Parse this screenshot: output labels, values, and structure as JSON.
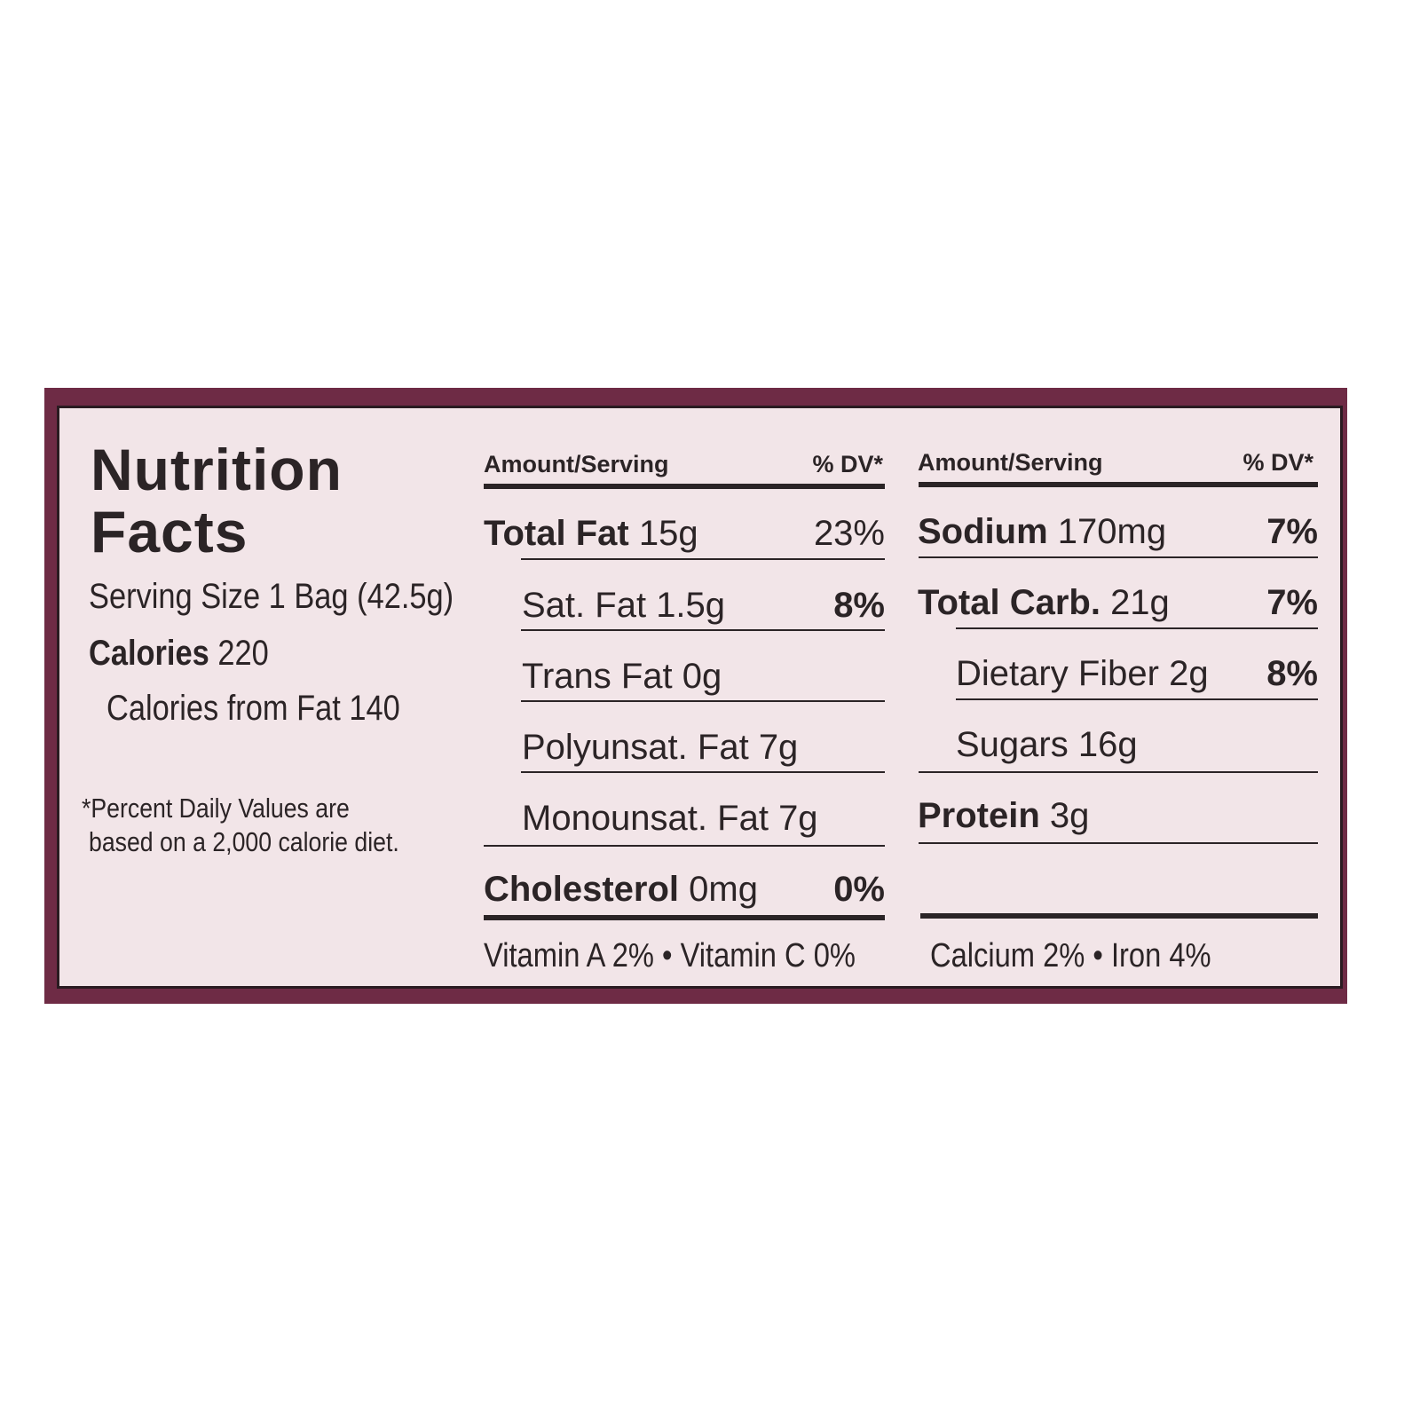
{
  "label": {
    "title_line1": "Nutrition",
    "title_line2": "Facts",
    "serving_size": "Serving Size 1 Bag (42.5g)",
    "calories_label": "Calories",
    "calories_value": "220",
    "calories_from_fat": "Calories from Fat 140",
    "footnote_line1": "*Percent Daily Values are",
    "footnote_line2": "based on a 2,000 calorie diet."
  },
  "left_table": {
    "header_amount": "Amount/Serving",
    "header_dv": "% DV*",
    "rows": [
      {
        "name": "Total Fat",
        "amount": "15g",
        "dv": "23%"
      },
      {
        "name": "Sat. Fat",
        "amount": "1.5g",
        "dv": "8%"
      },
      {
        "name": "Trans Fat",
        "amount": "0g",
        "dv": ""
      },
      {
        "name": "Polyunsat. Fat",
        "amount": "7g",
        "dv": ""
      },
      {
        "name": "Monounsat. Fat",
        "amount": "7g",
        "dv": ""
      },
      {
        "name": "Cholesterol",
        "amount": "0mg",
        "dv": "0%"
      }
    ],
    "vitamins": "Vitamin A 2%  •  Vitamin C 0%"
  },
  "right_table": {
    "header_amount": "Amount/Serving",
    "header_dv": "% DV*",
    "rows": [
      {
        "name": "Sodium",
        "amount": "170mg",
        "dv": "7%"
      },
      {
        "name": "Total Carb.",
        "amount": "21g",
        "dv": "7%"
      },
      {
        "name": "Dietary Fiber",
        "amount": "2g",
        "dv": "8%"
      },
      {
        "name": "Sugars",
        "amount": "16g",
        "dv": ""
      },
      {
        "name": "Protein",
        "amount": "3g",
        "dv": ""
      }
    ],
    "minerals": "Calcium 2%  •  Iron 4%"
  },
  "colors": {
    "border": "#6e2b45",
    "background": "#f2e5e8",
    "text": "#2b2426"
  }
}
